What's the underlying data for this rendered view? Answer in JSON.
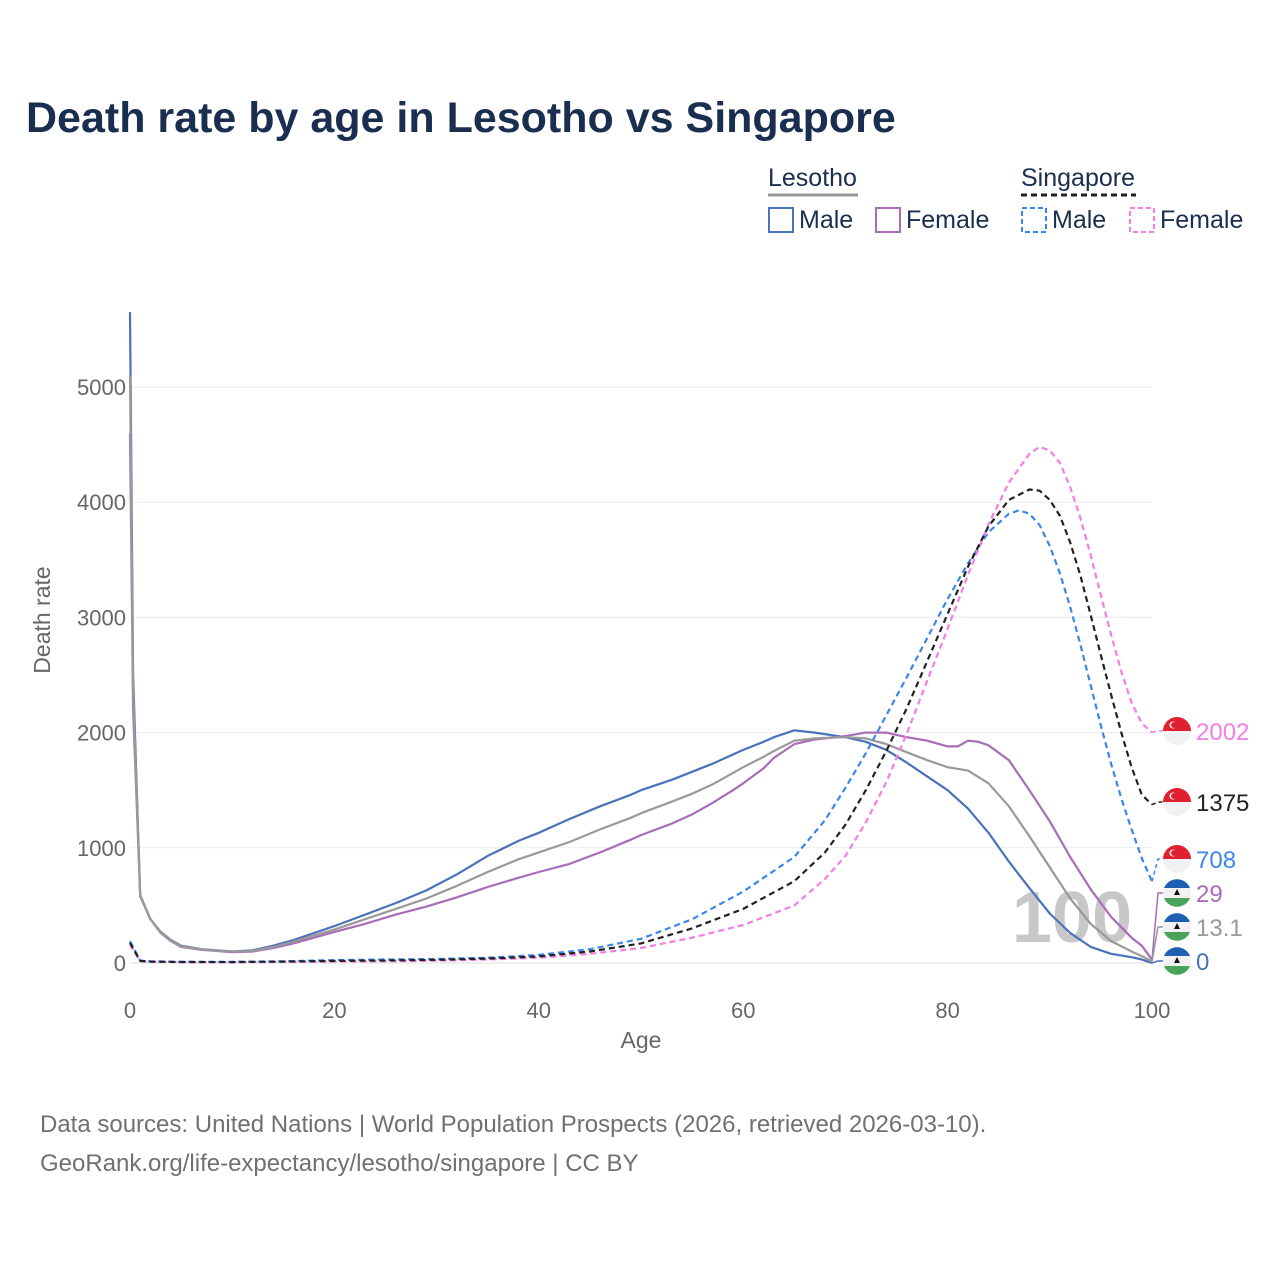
{
  "chart_data": {
    "type": "line",
    "title": "Death rate by age in Lesotho vs Singapore",
    "xlabel": "Age",
    "ylabel": "Death rate",
    "xlim": [
      0,
      100
    ],
    "ylim": [
      0,
      5000
    ],
    "xticks": [
      0,
      20,
      40,
      60,
      80,
      100
    ],
    "yticks": [
      0,
      1000,
      2000,
      3000,
      4000,
      5000
    ],
    "grid": true,
    "legend": {
      "groups": [
        {
          "name": "Lesotho",
          "style": "solid",
          "items": [
            "Male",
            "Female"
          ]
        },
        {
          "name": "Singapore",
          "style": "dashed",
          "items": [
            "Male",
            "Female"
          ]
        }
      ]
    },
    "series": [
      {
        "name": "Lesotho Male",
        "country": "Lesotho",
        "sex": "Male",
        "color": "#4a72b8",
        "dash": false,
        "x": [
          0,
          0.3,
          1,
          2,
          3,
          4,
          5,
          7,
          10,
          12,
          14,
          16,
          18,
          20,
          23,
          26,
          29,
          32,
          35,
          38,
          40,
          43,
          46,
          49,
          50,
          53,
          55,
          57,
          59,
          60,
          62,
          63,
          65,
          67,
          70,
          72,
          74,
          76,
          78,
          80,
          82,
          84,
          86,
          88,
          90,
          92,
          94,
          96,
          98,
          99,
          100
        ],
        "values": [
          5650,
          2500,
          580,
          380,
          270,
          200,
          150,
          120,
          100,
          110,
          150,
          200,
          260,
          320,
          420,
          520,
          630,
          770,
          930,
          1060,
          1130,
          1250,
          1360,
          1460,
          1500,
          1590,
          1660,
          1730,
          1810,
          1850,
          1920,
          1960,
          2020,
          2000,
          1960,
          1920,
          1850,
          1740,
          1620,
          1500,
          1340,
          1130,
          880,
          650,
          430,
          260,
          140,
          80,
          50,
          30,
          0
        ]
      },
      {
        "name": "Lesotho Female",
        "country": "Lesotho",
        "sex": "Female",
        "color": "#a86cb8",
        "dash": false,
        "x": [
          0,
          0.3,
          1,
          2,
          3,
          4,
          5,
          7,
          10,
          12,
          14,
          16,
          18,
          20,
          23,
          26,
          29,
          32,
          35,
          38,
          40,
          43,
          46,
          49,
          50,
          53,
          55,
          57,
          59,
          60,
          62,
          63,
          65,
          67,
          70,
          72,
          74,
          76,
          78,
          80,
          81,
          82,
          83,
          84,
          86,
          88,
          90,
          92,
          94,
          96,
          98,
          99,
          100
        ],
        "values": [
          4600,
          2200,
          590,
          380,
          260,
          190,
          140,
          115,
          95,
          100,
          130,
          170,
          220,
          270,
          340,
          420,
          490,
          570,
          660,
          740,
          790,
          860,
          960,
          1070,
          1110,
          1210,
          1290,
          1390,
          1500,
          1560,
          1690,
          1780,
          1900,
          1940,
          1970,
          2000,
          2000,
          1960,
          1930,
          1880,
          1880,
          1930,
          1920,
          1890,
          1760,
          1500,
          1230,
          920,
          640,
          400,
          220,
          150,
          29
        ]
      },
      {
        "name": "Lesotho Both sexes",
        "country": "Lesotho",
        "sex": "Both",
        "color": "#999999",
        "dash": false,
        "x": [
          0,
          0.3,
          1,
          2,
          3,
          4,
          5,
          7,
          10,
          12,
          14,
          16,
          18,
          20,
          23,
          26,
          29,
          32,
          35,
          38,
          40,
          43,
          46,
          49,
          50,
          53,
          55,
          57,
          59,
          60,
          62,
          63,
          65,
          67,
          70,
          72,
          74,
          76,
          78,
          80,
          82,
          84,
          86,
          88,
          90,
          92,
          94,
          96,
          98,
          99,
          100
        ],
        "values": [
          5100,
          2350,
          585,
          380,
          265,
          195,
          145,
          118,
          98,
          105,
          140,
          185,
          240,
          290,
          380,
          470,
          560,
          670,
          790,
          900,
          960,
          1050,
          1160,
          1260,
          1300,
          1400,
          1470,
          1550,
          1650,
          1700,
          1790,
          1840,
          1930,
          1950,
          1960,
          1950,
          1900,
          1830,
          1760,
          1700,
          1670,
          1560,
          1360,
          1100,
          830,
          560,
          340,
          190,
          100,
          60,
          13.1
        ]
      },
      {
        "name": "Singapore Male",
        "country": "Singapore",
        "sex": "Male",
        "color": "#3b86e8",
        "dash": true,
        "x": [
          0,
          1,
          2,
          5,
          10,
          15,
          20,
          25,
          30,
          35,
          40,
          45,
          50,
          55,
          60,
          65,
          68,
          70,
          72,
          74,
          76,
          78,
          80,
          82,
          84,
          86,
          87,
          88,
          89,
          90,
          91,
          92,
          93,
          94,
          95,
          96,
          97,
          98,
          99,
          100
        ],
        "values": [
          190,
          20,
          15,
          10,
          10,
          15,
          25,
          30,
          35,
          45,
          70,
          120,
          210,
          380,
          620,
          920,
          1240,
          1520,
          1820,
          2150,
          2480,
          2820,
          3160,
          3470,
          3740,
          3900,
          3930,
          3900,
          3800,
          3620,
          3380,
          3090,
          2760,
          2410,
          2060,
          1730,
          1430,
          1160,
          910,
          708
        ]
      },
      {
        "name": "Singapore Female",
        "country": "Singapore",
        "sex": "Female",
        "color": "#f47ee6",
        "dash": true,
        "x": [
          0,
          1,
          2,
          5,
          10,
          15,
          20,
          25,
          30,
          35,
          40,
          45,
          50,
          55,
          60,
          65,
          68,
          70,
          72,
          74,
          76,
          78,
          80,
          82,
          84,
          86,
          88,
          89,
          90,
          91,
          92,
          93,
          94,
          95,
          96,
          97,
          98,
          99,
          100
        ],
        "values": [
          160,
          15,
          10,
          8,
          7,
          10,
          12,
          15,
          20,
          30,
          45,
          80,
          130,
          220,
          330,
          500,
          730,
          930,
          1220,
          1570,
          1990,
          2450,
          2900,
          3370,
          3810,
          4170,
          4420,
          4480,
          4450,
          4340,
          4130,
          3860,
          3540,
          3190,
          2850,
          2530,
          2260,
          2080,
          2002
        ]
      },
      {
        "name": "Singapore Both sexes",
        "country": "Singapore",
        "sex": "Both",
        "color": "#222222",
        "dash": true,
        "x": [
          0,
          1,
          2,
          5,
          10,
          15,
          20,
          25,
          30,
          35,
          40,
          45,
          50,
          55,
          60,
          65,
          68,
          70,
          72,
          74,
          76,
          78,
          80,
          82,
          84,
          86,
          88,
          89,
          90,
          91,
          92,
          93,
          94,
          95,
          96,
          97,
          98,
          99,
          100
        ],
        "values": [
          175,
          18,
          12,
          9,
          8,
          12,
          18,
          22,
          28,
          38,
          57,
          100,
          170,
          300,
          470,
          710,
          960,
          1200,
          1500,
          1840,
          2210,
          2620,
          3030,
          3440,
          3790,
          4020,
          4110,
          4100,
          4020,
          3880,
          3650,
          3360,
          3020,
          2670,
          2330,
          2000,
          1700,
          1460,
          1375
        ]
      }
    ],
    "end_labels": [
      {
        "series": "Singapore Female",
        "text": "2002",
        "value": 2002,
        "color": "#f47ee6",
        "flag": "singapore-flag"
      },
      {
        "series": "Singapore Both sexes",
        "text": "1375",
        "value": 1375,
        "color": "#222222",
        "flag": "singapore-flag"
      },
      {
        "series": "Singapore Male",
        "text": "708",
        "value": 708,
        "color": "#3b86e8",
        "flag": "singapore-flag"
      },
      {
        "series": "Lesotho Female",
        "text": "29",
        "value": 29,
        "color": "#a86cb8",
        "flag": "lesotho-flag"
      },
      {
        "series": "Lesotho Both sexes",
        "text": "13.1",
        "value": 13.1,
        "color": "#999999",
        "flag": "lesotho-flag"
      },
      {
        "series": "Lesotho Male",
        "text": "0",
        "value": 0,
        "color": "#4a72b8",
        "flag": "lesotho-flag"
      }
    ],
    "annotation": "100"
  },
  "source_lines": [
    "Data sources: United Nations | World Population Prospects (2026, retrieved 2026-03-10).",
    "GeoRank.org/life-expectancy/lesotho/singapore | CC BY"
  ]
}
